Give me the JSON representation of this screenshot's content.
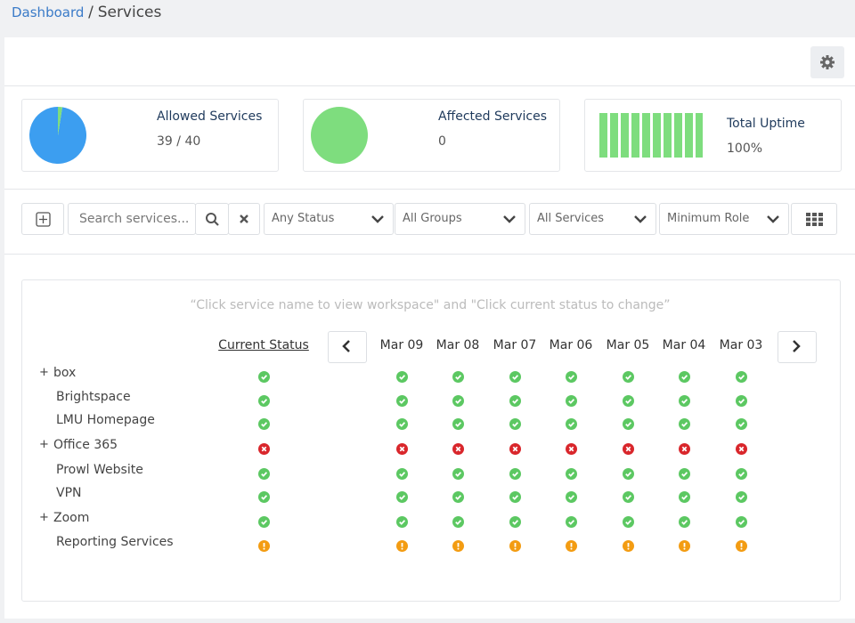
{
  "breadcrumb": {
    "link": "Dashboard",
    "separator": "/",
    "current": "Services"
  },
  "cards": [
    {
      "title": "Allowed Services",
      "value": {
        "count": 39,
        "separator": "/",
        "total": 40
      }
    },
    {
      "title": "Affected Services",
      "value": 0
    },
    {
      "title": "Total Uptime",
      "value": "100%"
    }
  ],
  "toolbar": {
    "search_placeholder": "Search services...",
    "filters": [
      "Any Status",
      "All Groups",
      "All Services",
      "Minimum Role"
    ]
  },
  "grid": {
    "hint": "Click service name to view workspace\" and \"Click current status to change",
    "current_status_header": "Current Status",
    "dates": [
      "Mar 09",
      "Mar 08",
      "Mar 07",
      "Mar 06",
      "Mar 05",
      "Mar 04",
      "Mar 03"
    ],
    "rows": [
      {
        "toggle": "+",
        "name": "box",
        "current": "ok",
        "history": [
          "ok",
          "ok",
          "ok",
          "ok",
          "ok",
          "ok",
          "ok"
        ]
      },
      {
        "name": "Brightspace",
        "current": "ok",
        "history": [
          "ok",
          "ok",
          "ok",
          "ok",
          "ok",
          "ok",
          "ok"
        ]
      },
      {
        "name": "LMU Homepage",
        "current": "ok",
        "history": [
          "ok",
          "ok",
          "ok",
          "ok",
          "ok",
          "ok",
          "ok"
        ]
      },
      {
        "toggle": "+",
        "name": "Office 365",
        "current": "down",
        "history": [
          "down",
          "down",
          "down",
          "down",
          "down",
          "down",
          "down"
        ]
      },
      {
        "name": "Prowl Website",
        "current": "ok",
        "history": [
          "ok",
          "ok",
          "ok",
          "ok",
          "ok",
          "ok",
          "ok"
        ]
      },
      {
        "name": "VPN",
        "current": "ok",
        "history": [
          "ok",
          "ok",
          "ok",
          "ok",
          "ok",
          "ok",
          "ok"
        ]
      },
      {
        "toggle": "+",
        "name": "Zoom",
        "current": "ok",
        "history": [
          "ok",
          "ok",
          "ok",
          "ok",
          "ok",
          "ok",
          "ok"
        ]
      },
      {
        "name": "Reporting Services",
        "current": "warn",
        "history": [
          "warn",
          "warn",
          "warn",
          "warn",
          "warn",
          "warn",
          "warn"
        ]
      }
    ]
  }
}
